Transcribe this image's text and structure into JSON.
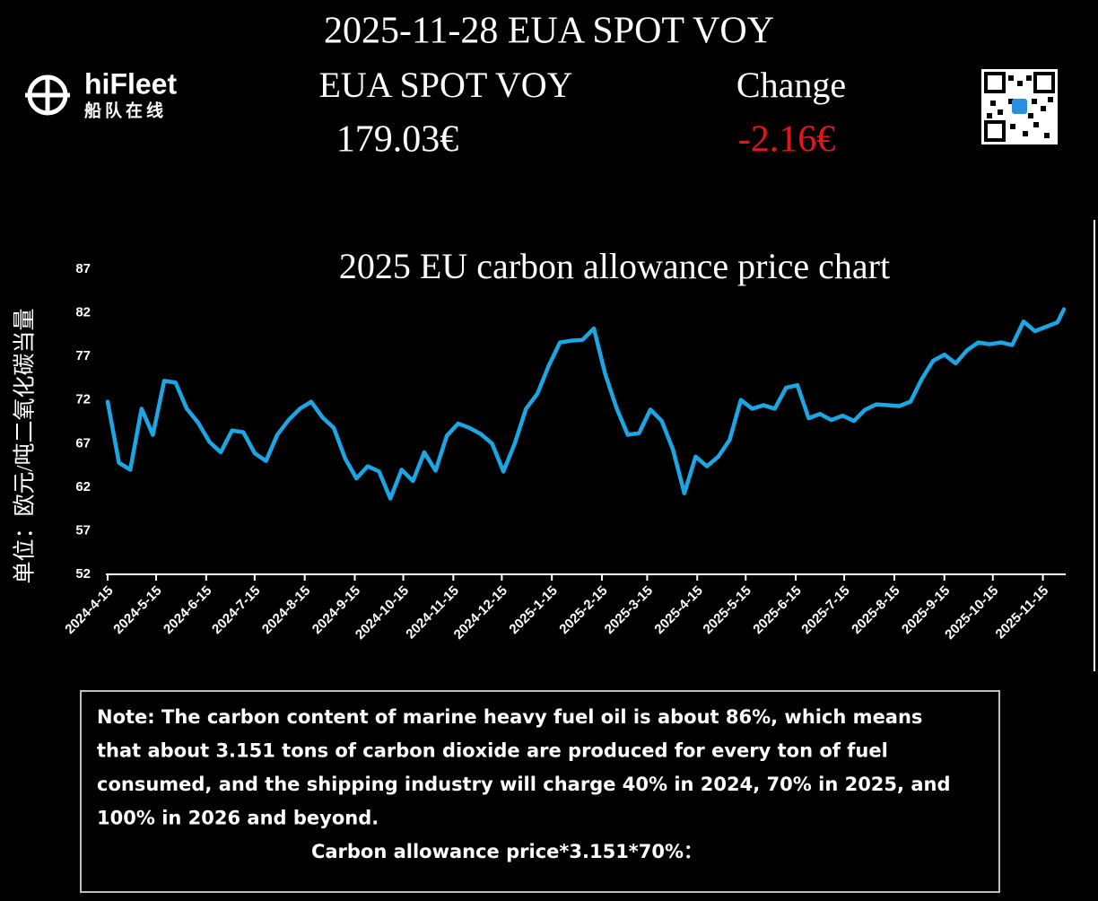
{
  "header": {
    "date_title": "2025-11-28 EUA SPOT VOY",
    "product": "EUA SPOT VOY",
    "price": "179.03€",
    "change_label": "Change",
    "change": "-2.16€"
  },
  "logo": {
    "name": "hiFleet",
    "subtitle": "船队在线"
  },
  "chart_data": {
    "type": "line",
    "title": "2025 EU carbon allowance price chart",
    "y_label": "单位：欧元/吨二氧化碳当量",
    "color": "#1ba7e3",
    "x": [
      "2024-4-15",
      "2024-4-22",
      "2024-4-29",
      "2024-5-6",
      "2024-5-13",
      "2024-5-20",
      "2024-5-27",
      "2024-6-3",
      "2024-6-10",
      "2024-6-17",
      "2024-6-24",
      "2024-7-1",
      "2024-7-8",
      "2024-7-15",
      "2024-7-22",
      "2024-7-29",
      "2024-8-5",
      "2024-8-12",
      "2024-8-19",
      "2024-8-26",
      "2024-9-2",
      "2024-9-9",
      "2024-9-16",
      "2024-9-23",
      "2024-9-30",
      "2024-10-7",
      "2024-10-14",
      "2024-10-21",
      "2024-10-28",
      "2024-11-4",
      "2024-11-11",
      "2024-11-18",
      "2024-11-25",
      "2024-12-2",
      "2024-12-9",
      "2024-12-16",
      "2024-12-23",
      "2024-12-30",
      "2025-1-6",
      "2025-1-13",
      "2025-1-20",
      "2025-1-27",
      "2025-2-3",
      "2025-2-10",
      "2025-2-17",
      "2025-2-24",
      "2025-3-3",
      "2025-3-10",
      "2025-3-17",
      "2025-3-24",
      "2025-3-31",
      "2025-4-7",
      "2025-4-14",
      "2025-4-21",
      "2025-4-28",
      "2025-5-5",
      "2025-5-12",
      "2025-5-19",
      "2025-5-26",
      "2025-6-2",
      "2025-6-9",
      "2025-6-16",
      "2025-6-23",
      "2025-6-30",
      "2025-7-7",
      "2025-7-14",
      "2025-7-21",
      "2025-7-28",
      "2025-8-4",
      "2025-8-11",
      "2025-8-18",
      "2025-8-25",
      "2025-9-1",
      "2025-9-8",
      "2025-9-15",
      "2025-9-22",
      "2025-9-29",
      "2025-10-6",
      "2025-10-13",
      "2025-10-20",
      "2025-10-27",
      "2025-11-3",
      "2025-11-10",
      "2025-11-17",
      "2025-11-24",
      "2025-11-28"
    ],
    "values": [
      71.8,
      64.8,
      64,
      71,
      68,
      74.2,
      74,
      71,
      69.4,
      67.2,
      66,
      68.5,
      68.3,
      65.9,
      65,
      68,
      69.7,
      71,
      71.8,
      70,
      68.8,
      65.3,
      63,
      64.4,
      63.8,
      60.7,
      64,
      62.7,
      66,
      63.9,
      67.9,
      69.3,
      68.8,
      68.1,
      67,
      63.8,
      67,
      71,
      72.7,
      75.9,
      78.6,
      78.8,
      78.9,
      80.2,
      75,
      71.1,
      68,
      68.2,
      70.9,
      69.6,
      66.3,
      61.3,
      65.5,
      64.4,
      65.5,
      67.4,
      72,
      71,
      71.4,
      71,
      73.4,
      73.7,
      69.9,
      70.4,
      69.7,
      70.2,
      69.6,
      70.9,
      71.5,
      71.4,
      71.3,
      71.8,
      74.4,
      76.5,
      77.2,
      76.2,
      77.7,
      78.6,
      78.4,
      78.6,
      78.3,
      81,
      79.9,
      80.4,
      80.9,
      82.4
    ],
    "xlim": [
      "2024-4-15",
      "2025-11-28"
    ],
    "xticks": [
      "2024-4-15",
      "2024-5-15",
      "2024-6-15",
      "2024-7-15",
      "2024-8-15",
      "2024-9-15",
      "2024-10-15",
      "2024-11-15",
      "2024-12-15",
      "2025-1-15",
      "2025-2-15",
      "2025-3-15",
      "2025-4-15",
      "2025-5-15",
      "2025-6-15",
      "2025-7-15",
      "2025-8-15",
      "2025-9-15",
      "2025-10-15",
      "2025-11-15"
    ],
    "ylim": [
      52,
      87
    ],
    "yticks": [
      52,
      57,
      62,
      67,
      72,
      77,
      82,
      87
    ],
    "grid": false
  },
  "note": {
    "lines": [
      "Note: The carbon content of marine heavy fuel oil is about 86%, which means",
      "that about 3.151 tons of carbon dioxide are produced for every ton of fuel",
      "consumed, and the shipping industry will charge 40% in 2024, 70% in 2025, and",
      "100% in 2026 and beyond."
    ],
    "formula": "Carbon allowance price*3.151*70%："
  }
}
